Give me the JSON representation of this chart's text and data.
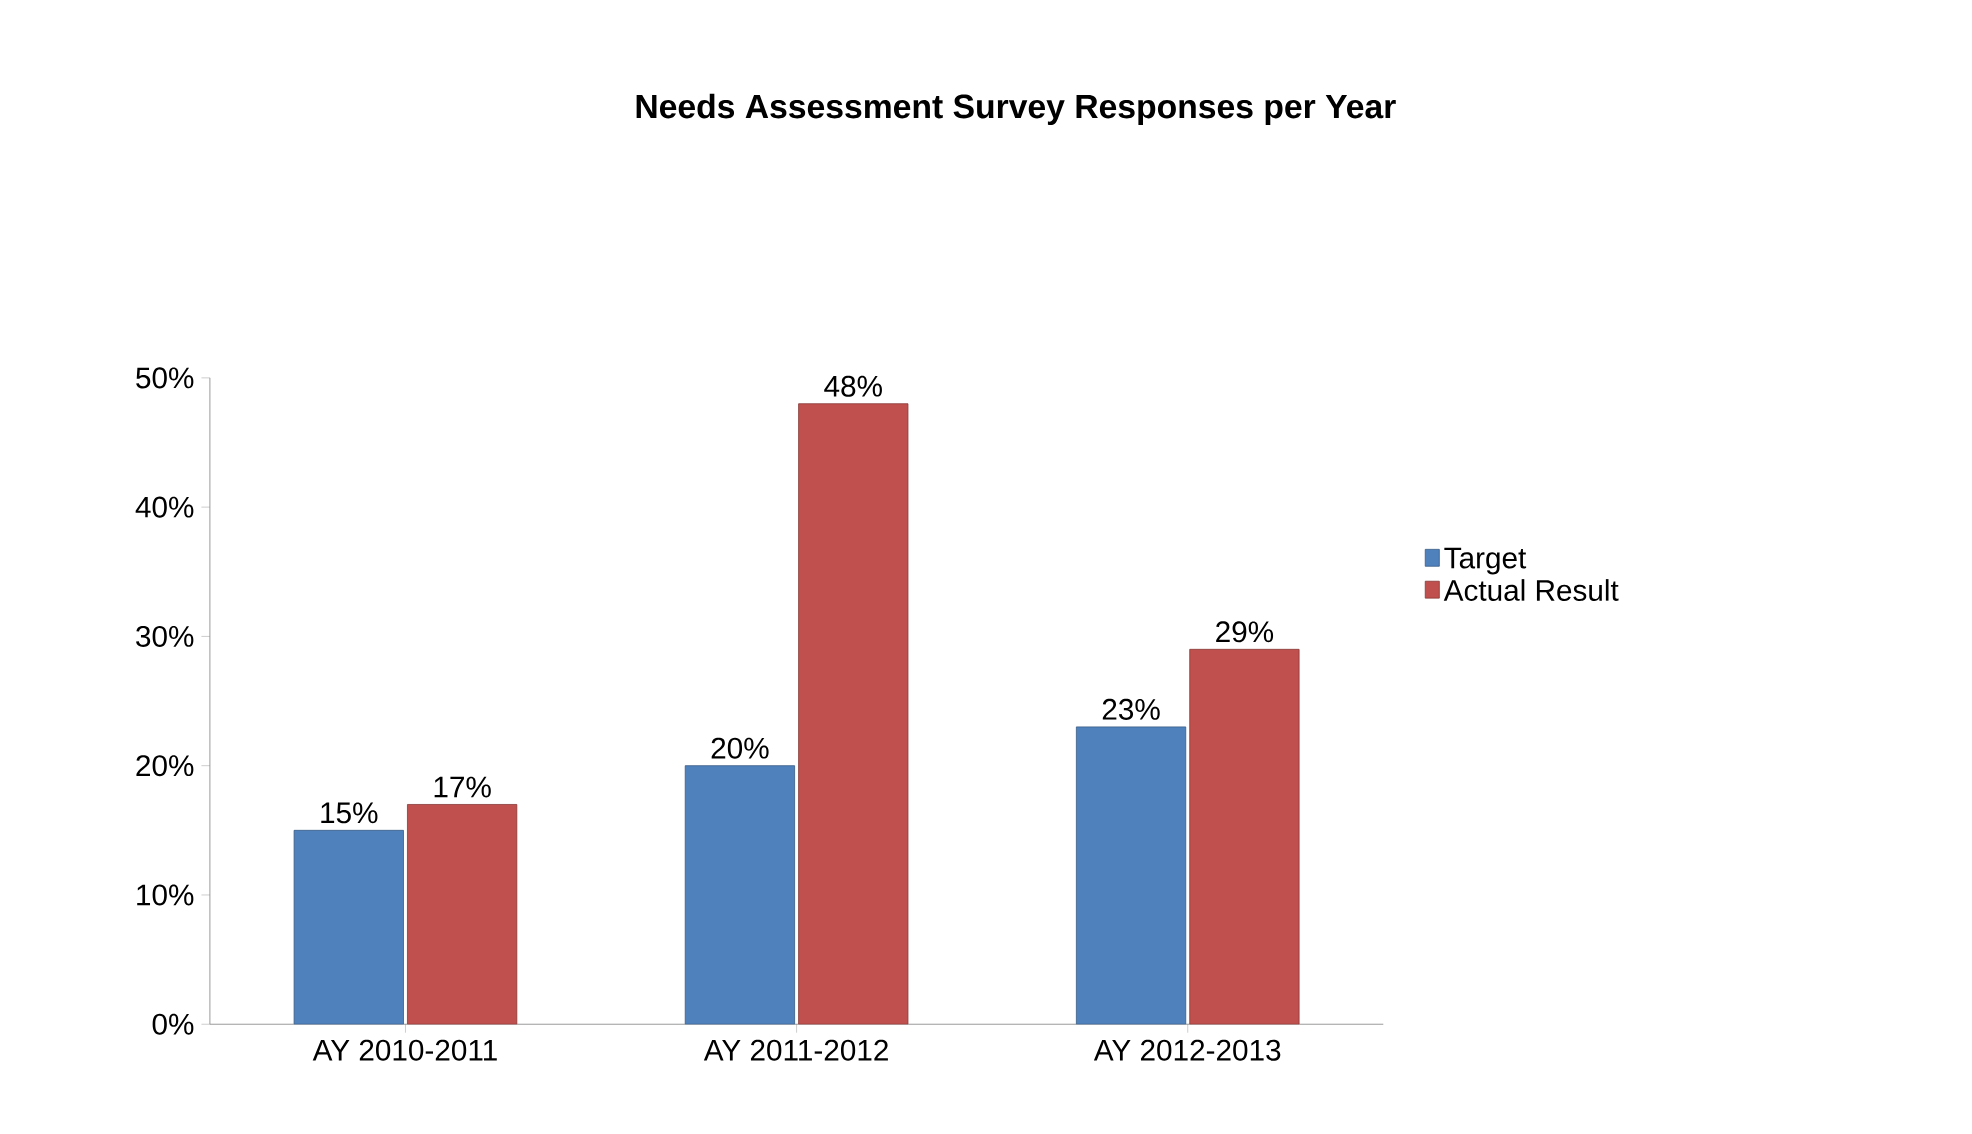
{
  "chart_data": {
    "type": "bar",
    "title": "Needs Assessment Survey Responses per Year",
    "categories": [
      "AY 2010-2011",
      "AY 2011-2012",
      "AY 2012-2013"
    ],
    "series": [
      {
        "name": "Target",
        "color": "#4f81bd",
        "values": [
          15,
          20,
          23
        ],
        "value_labels": [
          "15%",
          "20%",
          "23%"
        ]
      },
      {
        "name": "Actual Result",
        "color": "#c0504d",
        "values": [
          17,
          48,
          29
        ],
        "value_labels": [
          "17%",
          "48%",
          "29%"
        ]
      }
    ],
    "ylim": [
      0,
      50
    ],
    "yticks": [
      {
        "value": 0,
        "label": "0%"
      },
      {
        "value": 10,
        "label": "10%"
      },
      {
        "value": 20,
        "label": "20%"
      },
      {
        "value": 30,
        "label": "30%"
      },
      {
        "value": 40,
        "label": "40%"
      },
      {
        "value": 50,
        "label": "50%"
      }
    ],
    "legend": "right"
  }
}
